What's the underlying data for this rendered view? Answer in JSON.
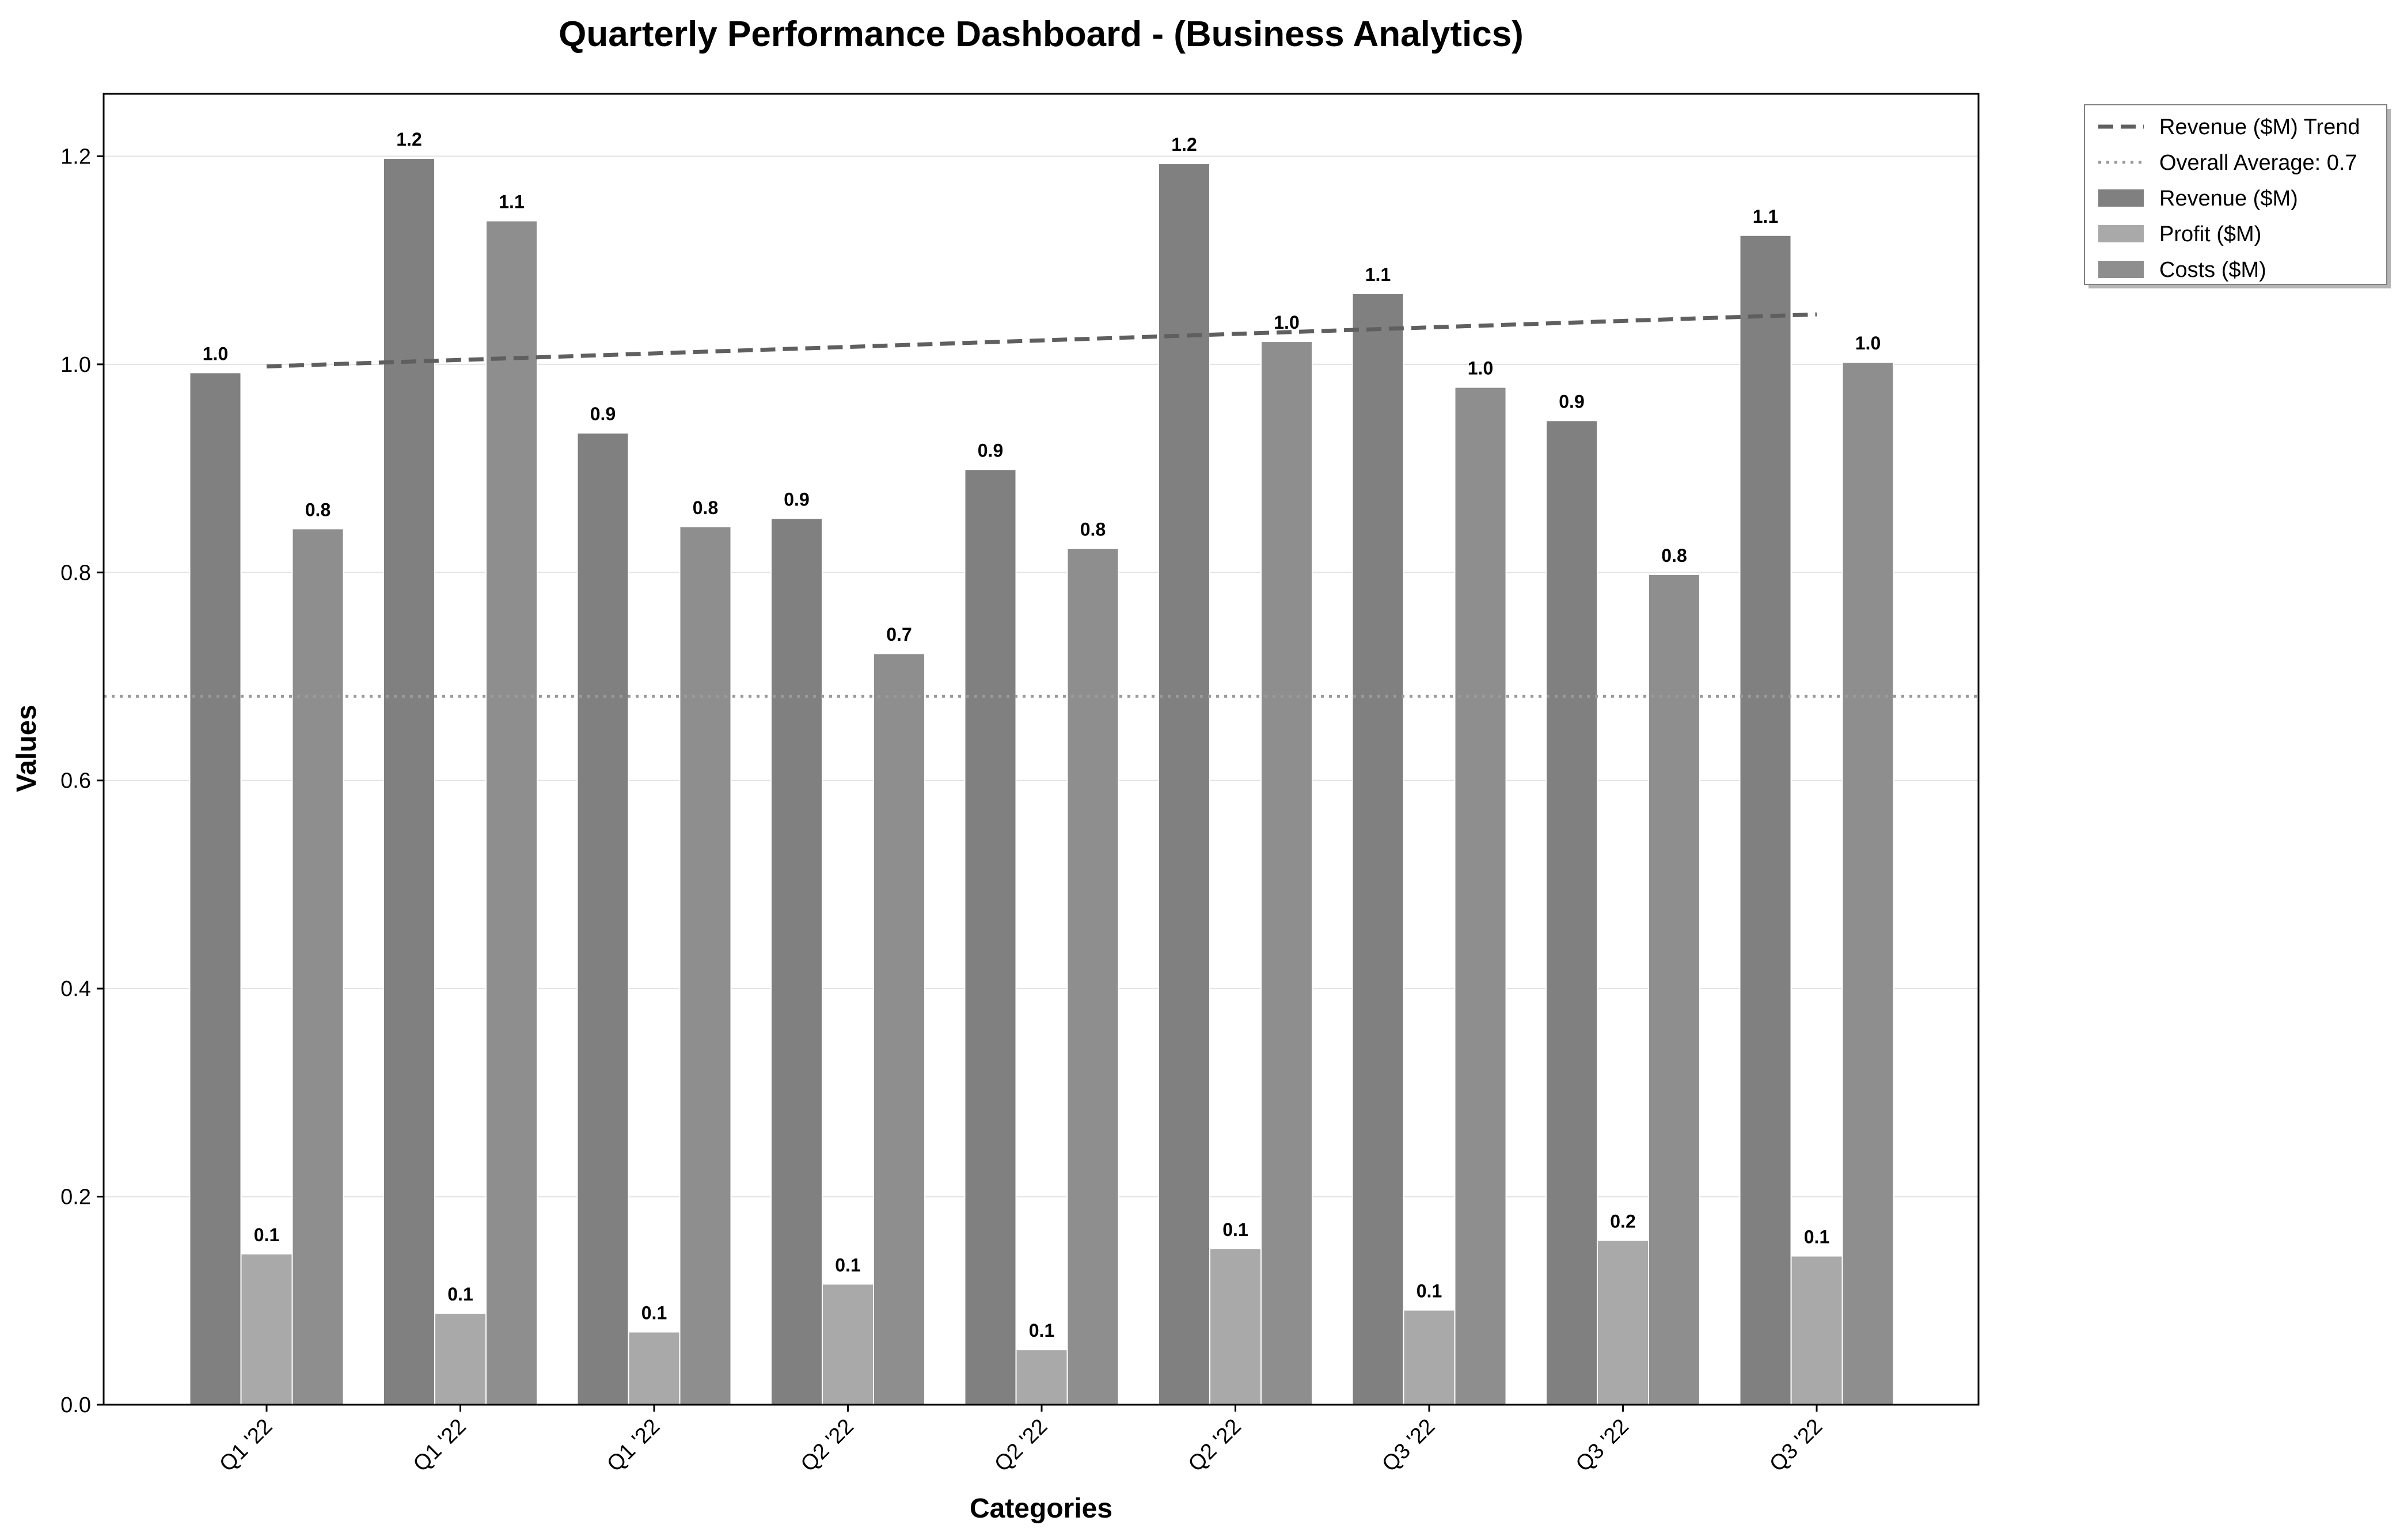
{
  "chart_data": {
    "type": "bar",
    "title": "Quarterly Performance Dashboard - (Business Analytics)",
    "xlabel": "Categories",
    "ylabel": "Values",
    "ylim": [
      0,
      1.26
    ],
    "yticks": [
      0.0,
      0.2,
      0.4,
      0.6,
      0.8,
      1.0,
      1.2
    ],
    "ytick_labels": [
      "0.0",
      "0.2",
      "0.4",
      "0.6",
      "0.8",
      "1.0",
      "1.2"
    ],
    "grid": "horizontal",
    "legend_position": "outside-top-right",
    "categories": [
      "Q1 '22",
      "Q1 '22",
      "Q1 '22",
      "Q2 '22",
      "Q2 '22",
      "Q2 '22",
      "Q3 '22",
      "Q3 '22",
      "Q3 '22"
    ],
    "series": [
      {
        "name": "Revenue ($M)",
        "color": "#808080",
        "values": [
          0.992,
          1.198,
          0.934,
          0.852,
          0.899,
          1.193,
          1.068,
          0.946,
          1.124
        ],
        "labels": [
          "1.0",
          "1.2",
          "0.9",
          "0.9",
          "0.9",
          "1.2",
          "1.1",
          "0.9",
          "1.1"
        ]
      },
      {
        "name": "Profit ($M)",
        "color": "#a9a9a9",
        "values": [
          0.145,
          0.088,
          0.07,
          0.116,
          0.053,
          0.15,
          0.091,
          0.158,
          0.143
        ],
        "labels": [
          "0.1",
          "0.1",
          "0.1",
          "0.1",
          "0.1",
          "0.1",
          "0.1",
          "0.2",
          "0.1"
        ]
      },
      {
        "name": "Costs ($M)",
        "color": "#8e8e8e",
        "values": [
          0.842,
          1.138,
          0.844,
          0.722,
          0.823,
          1.022,
          0.978,
          0.798,
          1.002
        ],
        "labels": [
          "0.8",
          "1.1",
          "0.8",
          "0.7",
          "0.8",
          "1.0",
          "1.0",
          "0.8",
          "1.0"
        ]
      }
    ],
    "trend_line": {
      "name": "Revenue ($M) Trend",
      "color": "#5f5f5f",
      "start_value": 0.998,
      "end_value": 1.048
    },
    "average_line": {
      "name": "Overall Average: 0.7",
      "color": "#9a9a9a",
      "value": 0.681
    }
  }
}
